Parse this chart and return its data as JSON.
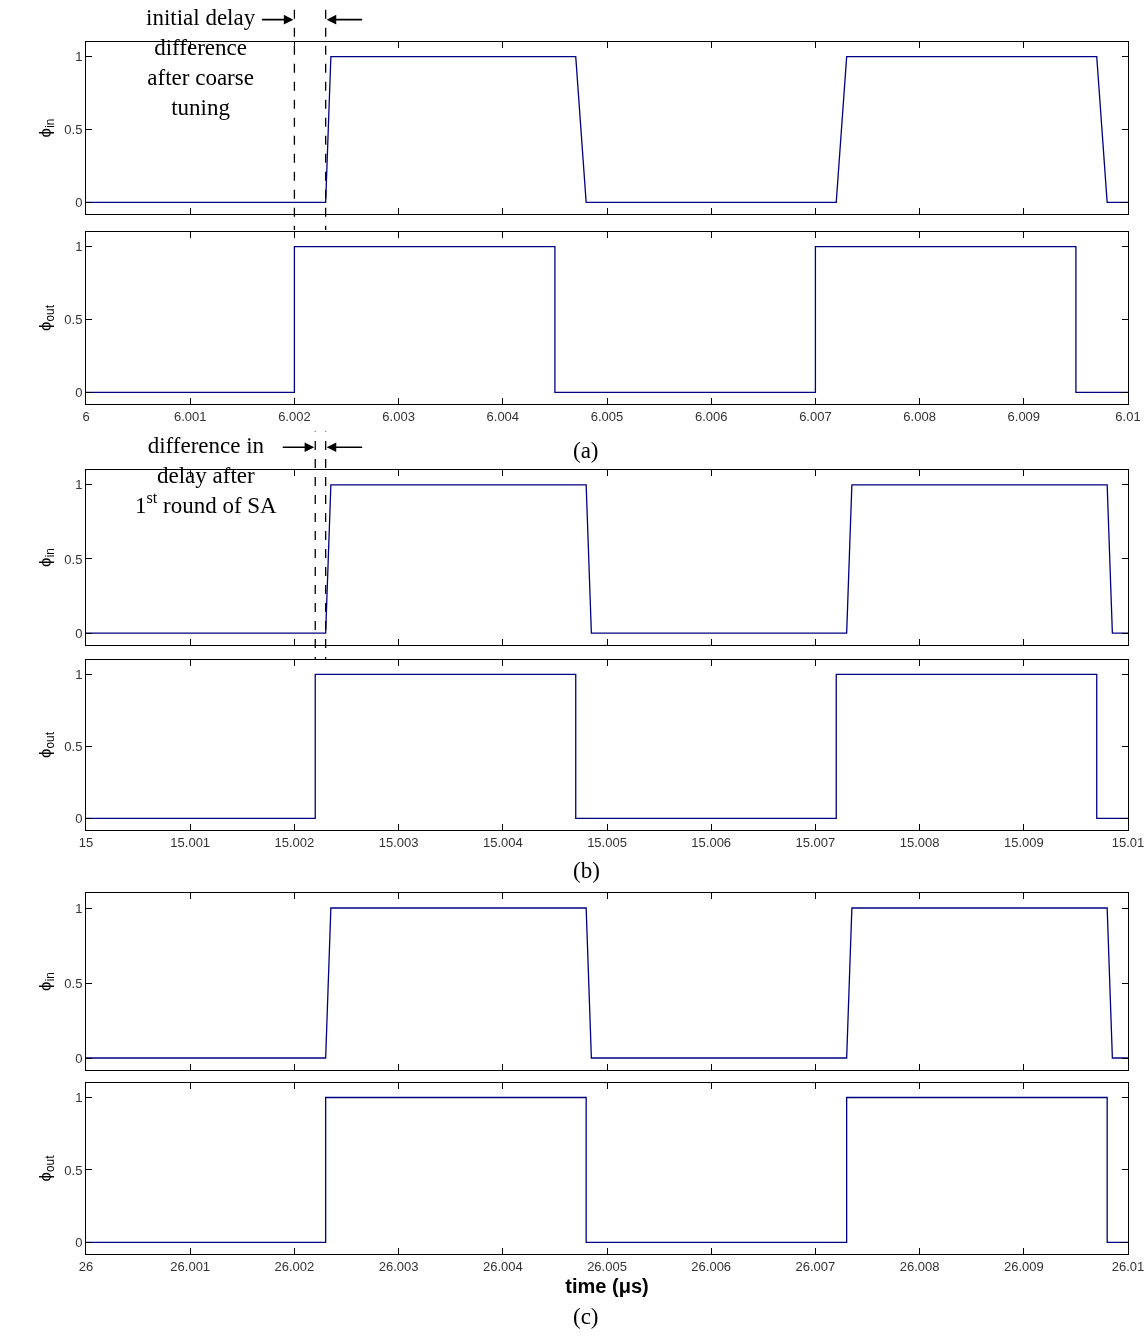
{
  "chart_data": [
    {
      "type": "line",
      "ylabel": "ϕ$_{in}$",
      "xlim": [
        6,
        6.01
      ],
      "xticks": [
        6,
        6.001,
        6.002,
        6.003,
        6.004,
        6.005,
        6.006,
        6.007,
        6.008,
        6.009,
        6.01
      ],
      "ylim": [
        -0.08,
        1.1
      ],
      "yticks": [
        0,
        0.5,
        1
      ],
      "tick_labels": "y",
      "series": [
        {
          "color": "#000080",
          "x": [
            6,
            6.0023,
            6.00235,
            6.0047,
            6.0048,
            6.0072,
            6.0073,
            6.0097,
            6.0098,
            6.01
          ],
          "values": [
            0,
            0,
            1,
            1,
            0,
            0,
            1,
            1,
            0,
            0
          ]
        }
      ],
      "ref_lines": [
        {
          "axis": "x",
          "value": 6.002,
          "color": "#000000",
          "line_style": "dashed"
        },
        {
          "axis": "x",
          "value": 6.0023,
          "color": "#000000",
          "line_style": "dashed"
        }
      ],
      "annotations": [
        "initial delay\ndifference\nafter coarse\ntuning"
      ]
    },
    {
      "type": "line",
      "ylabel": "ϕ$_{out}$",
      "xlim": [
        6,
        6.01
      ],
      "xticks": [
        6,
        6.001,
        6.002,
        6.003,
        6.004,
        6.005,
        6.006,
        6.007,
        6.008,
        6.009,
        6.01
      ],
      "ylim": [
        -0.08,
        1.1
      ],
      "yticks": [
        0,
        0.5,
        1
      ],
      "series": [
        {
          "color": "#000080",
          "x": [
            6,
            6.002,
            6.002,
            6.0045,
            6.0045,
            6.007,
            6.007,
            6.0095,
            6.0095,
            6.01
          ],
          "values": [
            0,
            0,
            1,
            1,
            0,
            0,
            1,
            1,
            0,
            0
          ]
        }
      ],
      "annotations": [
        "(a)"
      ]
    },
    {
      "type": "line",
      "ylabel": "ϕ$_{in}$",
      "xlim": [
        15,
        15.01
      ],
      "xticks": [
        15,
        15.001,
        15.002,
        15.003,
        15.004,
        15.005,
        15.006,
        15.007,
        15.008,
        15.009,
        15.01
      ],
      "ylim": [
        -0.08,
        1.1
      ],
      "yticks": [
        0,
        0.5,
        1
      ],
      "tick_labels": "y",
      "series": [
        {
          "color": "#000080",
          "x": [
            15,
            15.0023,
            15.00235,
            15.0048,
            15.00485,
            15.0073,
            15.00735,
            15.0098,
            15.00985,
            15.01
          ],
          "values": [
            0,
            0,
            1,
            1,
            0,
            0,
            1,
            1,
            0,
            0
          ]
        }
      ],
      "ref_lines": [
        {
          "axis": "x",
          "value": 15.0022,
          "color": "#000000",
          "line_style": "dashed"
        },
        {
          "axis": "x",
          "value": 15.0023,
          "color": "#000000",
          "line_style": "dashed"
        }
      ],
      "annotations": [
        "difference in\ndelay after\n1$^{st}$ round of SA"
      ]
    },
    {
      "type": "line",
      "ylabel": "ϕ$_{out}$",
      "xlim": [
        15,
        15.01
      ],
      "xticks": [
        15,
        15.001,
        15.002,
        15.003,
        15.004,
        15.005,
        15.006,
        15.007,
        15.008,
        15.009,
        15.01
      ],
      "ylim": [
        -0.08,
        1.1
      ],
      "yticks": [
        0,
        0.5,
        1
      ],
      "series": [
        {
          "color": "#000080",
          "x": [
            15,
            15.0022,
            15.0022,
            15.0047,
            15.0047,
            15.0072,
            15.0072,
            15.0097,
            15.0097,
            15.01
          ],
          "values": [
            0,
            0,
            1,
            1,
            0,
            0,
            1,
            1,
            0,
            0
          ]
        }
      ],
      "annotations": [
        "(b)"
      ]
    },
    {
      "type": "line",
      "ylabel": "ϕ$_{in}$",
      "xlim": [
        26,
        26.01
      ],
      "xticks": [
        26,
        26.001,
        26.002,
        26.003,
        26.004,
        26.005,
        26.006,
        26.007,
        26.008,
        26.009,
        26.01
      ],
      "ylim": [
        -0.08,
        1.1
      ],
      "yticks": [
        0,
        0.5,
        1
      ],
      "tick_labels": "y",
      "series": [
        {
          "color": "#000080",
          "x": [
            26,
            26.0023,
            26.00235,
            26.0048,
            26.00485,
            26.0073,
            26.00735,
            26.0098,
            26.00985,
            26.01
          ],
          "values": [
            0,
            0,
            1,
            1,
            0,
            0,
            1,
            1,
            0,
            0
          ]
        }
      ]
    },
    {
      "type": "line",
      "xlabel": "time (μs)",
      "ylabel": "ϕ$_{out}$",
      "xlim": [
        26,
        26.01
      ],
      "xticks": [
        26,
        26.001,
        26.002,
        26.003,
        26.004,
        26.005,
        26.006,
        26.007,
        26.008,
        26.009,
        26.01
      ],
      "ylim": [
        -0.08,
        1.1
      ],
      "yticks": [
        0,
        0.5,
        1
      ],
      "series": [
        {
          "color": "#000080",
          "x": [
            26,
            26.0023,
            26.0023,
            26.0048,
            26.0048,
            26.0073,
            26.0073,
            26.0098,
            26.0098,
            26.01
          ],
          "values": [
            0,
            0,
            1,
            1,
            0,
            0,
            1,
            1,
            0,
            0
          ]
        }
      ],
      "annotations": [
        "(c)"
      ]
    }
  ]
}
